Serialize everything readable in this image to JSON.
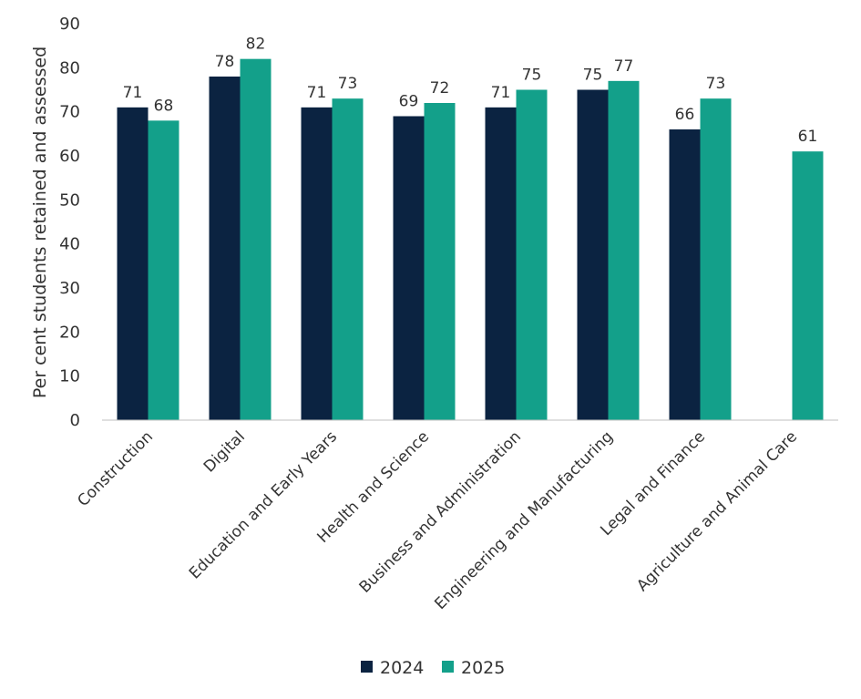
{
  "chart_data": {
    "type": "bar",
    "ylabel": "Per cent students retained and assessed",
    "xlabel": "",
    "ylim": [
      0,
      90
    ],
    "yticks": [
      0,
      10,
      20,
      30,
      40,
      50,
      60,
      70,
      80,
      90
    ],
    "grid": false,
    "legend_position": "bottom",
    "categories": [
      "Construction",
      "Digital",
      "Education and Early Years",
      "Health and Science",
      "Business and Administration",
      "Engineering and Manufacturing",
      "Legal and Finance",
      "Agriculture and Animal Care"
    ],
    "series": [
      {
        "name": "2024",
        "color": "#0b2341",
        "values": [
          71,
          78,
          71,
          69,
          71,
          75,
          66,
          null
        ],
        "labels": [
          "71",
          "78",
          "71",
          "69",
          "71",
          "75",
          "66",
          ""
        ]
      },
      {
        "name": "2025",
        "color": "#13a08a",
        "values": [
          68,
          82,
          73,
          72,
          75,
          77,
          73,
          61
        ],
        "labels": [
          "68",
          "82",
          "73",
          "72",
          "75",
          "77",
          "73",
          "61"
        ]
      }
    ]
  }
}
